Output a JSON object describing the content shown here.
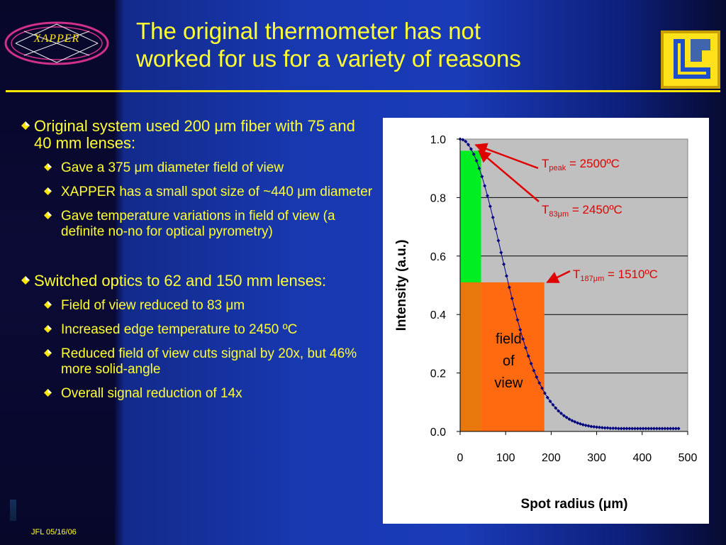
{
  "logo": {
    "text": "XAPPER"
  },
  "slide": {
    "title_lines": [
      "The original thermometer has not",
      "worked for us for a variety of reasons"
    ]
  },
  "bullets": {
    "main1": "Original system used 200 μm fiber with 75 and 40 mm lenses:",
    "sub1": [
      "Gave a 375 μm diameter field of view",
      "XAPPER has a small spot size of ~440 μm diameter",
      "Gave temperature variations in field of view (a definite no-no for optical pyrometry)"
    ],
    "main2": "Switched optics to 62 and 150 mm lenses:",
    "sub2": [
      "Field of view reduced to 83 μm",
      "Increased edge temperature to 2450 ºC",
      "Reduced field of view cuts signal by 20x, but 46% more solid-angle",
      "Overall signal reduction of 14x"
    ]
  },
  "footer": {
    "text": "JFL 05/16/06"
  },
  "colors": {
    "title": "#ffff33",
    "series": "#000080",
    "green_region": "#00ee22",
    "orange_region": "#ff6a10",
    "annotation": "#e00000"
  },
  "chart_data": {
    "type": "scatter",
    "xlabel": "Spot radius (μm)",
    "ylabel": "Intensity (a.u.)",
    "xlim": [
      0,
      500
    ],
    "ylim": [
      0,
      1
    ],
    "xticks": [
      "0",
      "100",
      "200",
      "300",
      "400",
      "500"
    ],
    "yticks": [
      "0.0",
      "0.2",
      "0.4",
      "0.6",
      "0.8",
      "1.0"
    ],
    "grid": "horizontal",
    "series": [
      {
        "x": [
          0,
          6,
          12,
          18,
          24,
          30,
          36,
          42,
          48,
          54,
          60,
          66,
          72,
          78,
          84,
          90,
          96,
          102,
          108,
          114,
          120,
          126,
          132,
          138,
          144,
          150,
          156,
          162,
          168,
          174,
          180,
          186,
          192,
          198,
          204,
          210,
          216,
          222,
          228,
          234,
          240,
          246,
          252,
          258,
          264,
          270,
          276,
          282,
          288,
          294,
          300,
          306,
          312,
          318,
          324,
          330,
          336,
          342,
          348,
          354,
          360,
          366,
          372,
          378,
          384,
          390,
          396,
          402,
          408,
          414,
          420,
          426,
          432,
          438,
          444,
          450,
          456,
          462,
          468,
          474,
          480
        ],
        "y": [
          1.0,
          0.998,
          0.992,
          0.981,
          0.966,
          0.948,
          0.926,
          0.9,
          0.872,
          0.84,
          0.806,
          0.77,
          0.732,
          0.693,
          0.653,
          0.612,
          0.572,
          0.532,
          0.493,
          0.455,
          0.418,
          0.382,
          0.348,
          0.316,
          0.286,
          0.258,
          0.232,
          0.208,
          0.186,
          0.166,
          0.148,
          0.131,
          0.116,
          0.103,
          0.091,
          0.08,
          0.07,
          0.062,
          0.054,
          0.048,
          0.042,
          0.037,
          0.033,
          0.029,
          0.026,
          0.023,
          0.021,
          0.019,
          0.017,
          0.016,
          0.015,
          0.014,
          0.013,
          0.012,
          0.012,
          0.011,
          0.011,
          0.011,
          0.01,
          0.01,
          0.01,
          0.01,
          0.01,
          0.01,
          0.01,
          0.01,
          0.01,
          0.01,
          0.01,
          0.01,
          0.01,
          0.01,
          0.01,
          0.01,
          0.01,
          0.01,
          0.01,
          0.01,
          0.01,
          0.01,
          0.01
        ]
      }
    ],
    "regions": [
      {
        "x0": 0,
        "x1": 46,
        "y0": 0,
        "y1": 0.96,
        "color": "#00ee22"
      },
      {
        "x0": 0,
        "x1": 185,
        "y0": 0,
        "y1": 0.51,
        "color": "#ff6a10",
        "label_lines": [
          "field",
          "of",
          "view"
        ]
      }
    ],
    "annotations": [
      {
        "T": "T",
        "sub": "peak",
        "rest": " = 2500ºC",
        "point": [
          28,
          0.98
        ]
      },
      {
        "T": "T",
        "sub": "83μm",
        "rest": " = 2450ºC",
        "point": [
          35,
          0.96
        ]
      },
      {
        "T": "T",
        "sub": "187μm",
        "rest": " = 1510ºC",
        "point": [
          185,
          0.51
        ]
      }
    ]
  }
}
